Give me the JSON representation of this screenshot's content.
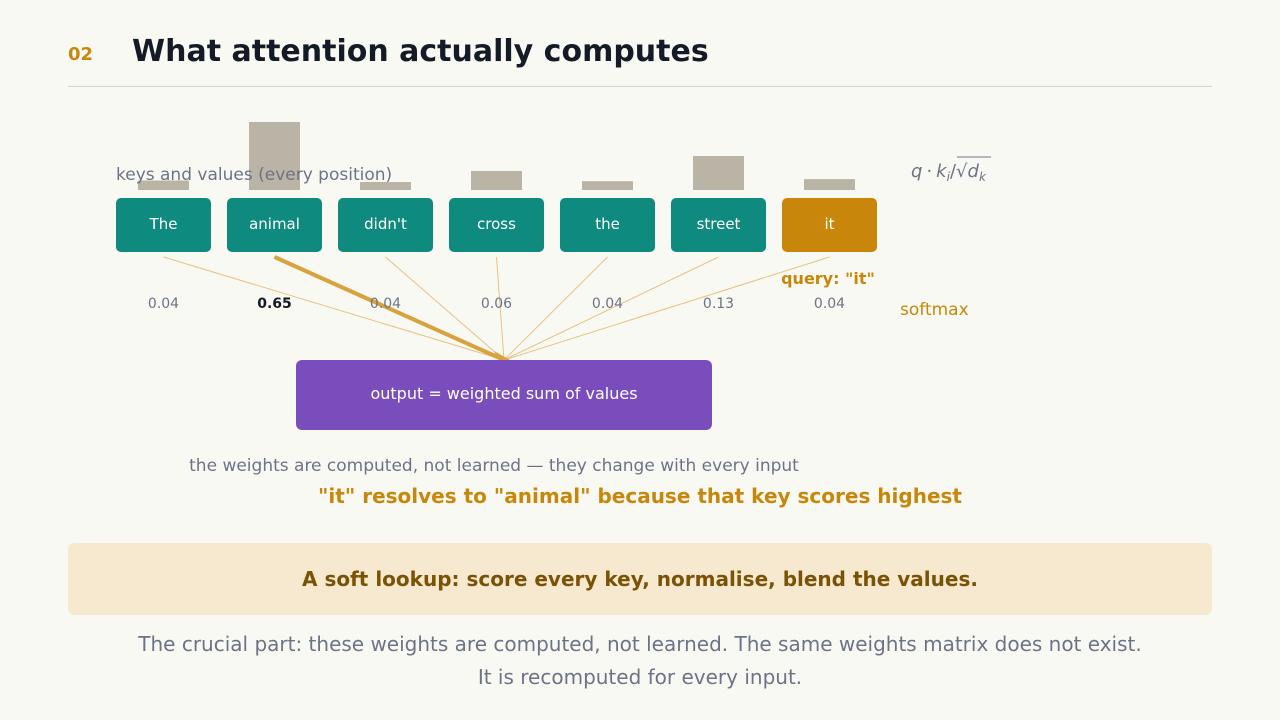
{
  "header": {
    "slide_number": "02",
    "title": "What attention actually computes"
  },
  "diagram": {
    "keys_label": "keys and values (every position)",
    "score_formula": {
      "q": "q",
      "dot": "·",
      "k": "k",
      "i": "i",
      "slash": "/",
      "root": "√",
      "d": "d",
      "dk": "k"
    },
    "query_label": "query: \"it\"",
    "softmax_label": "softmax",
    "output_label": "output = weighted sum of values",
    "tokens": [
      {
        "text": "The",
        "weight": "0.04",
        "value": 0.04,
        "score": 0.14
      },
      {
        "text": "animal",
        "weight": "0.65",
        "value": 0.65,
        "score": 1.0
      },
      {
        "text": "didn't",
        "weight": "0.04",
        "value": 0.04,
        "score": 0.1
      },
      {
        "text": "cross",
        "weight": "0.06",
        "value": 0.06,
        "score": 0.28
      },
      {
        "text": "the",
        "weight": "0.04",
        "value": 0.04,
        "score": 0.13
      },
      {
        "text": "street",
        "weight": "0.13",
        "value": 0.13,
        "score": 0.5
      },
      {
        "text": "it",
        "weight": "0.04",
        "value": 0.04,
        "score": 0.16
      }
    ],
    "highlight_index": 1,
    "query_index": 6,
    "colors": {
      "token": "#0f8a7e",
      "query": "#c8870a",
      "output": "#7a4dbd",
      "score_bar": "#b9b4a6",
      "line": "#e8c27f",
      "line_strong": "#d8a23f"
    }
  },
  "captions": {
    "note": "the weights are computed, not learned — they change with every input",
    "takeaway": "\"it\" resolves to \"animal\" because that key scores highest"
  },
  "callout": "A soft lookup: score every key, normalise, blend the values.",
  "body": "The crucial part: these weights are computed, not learned. The same weights matrix does not exist. It is recomputed for every input."
}
